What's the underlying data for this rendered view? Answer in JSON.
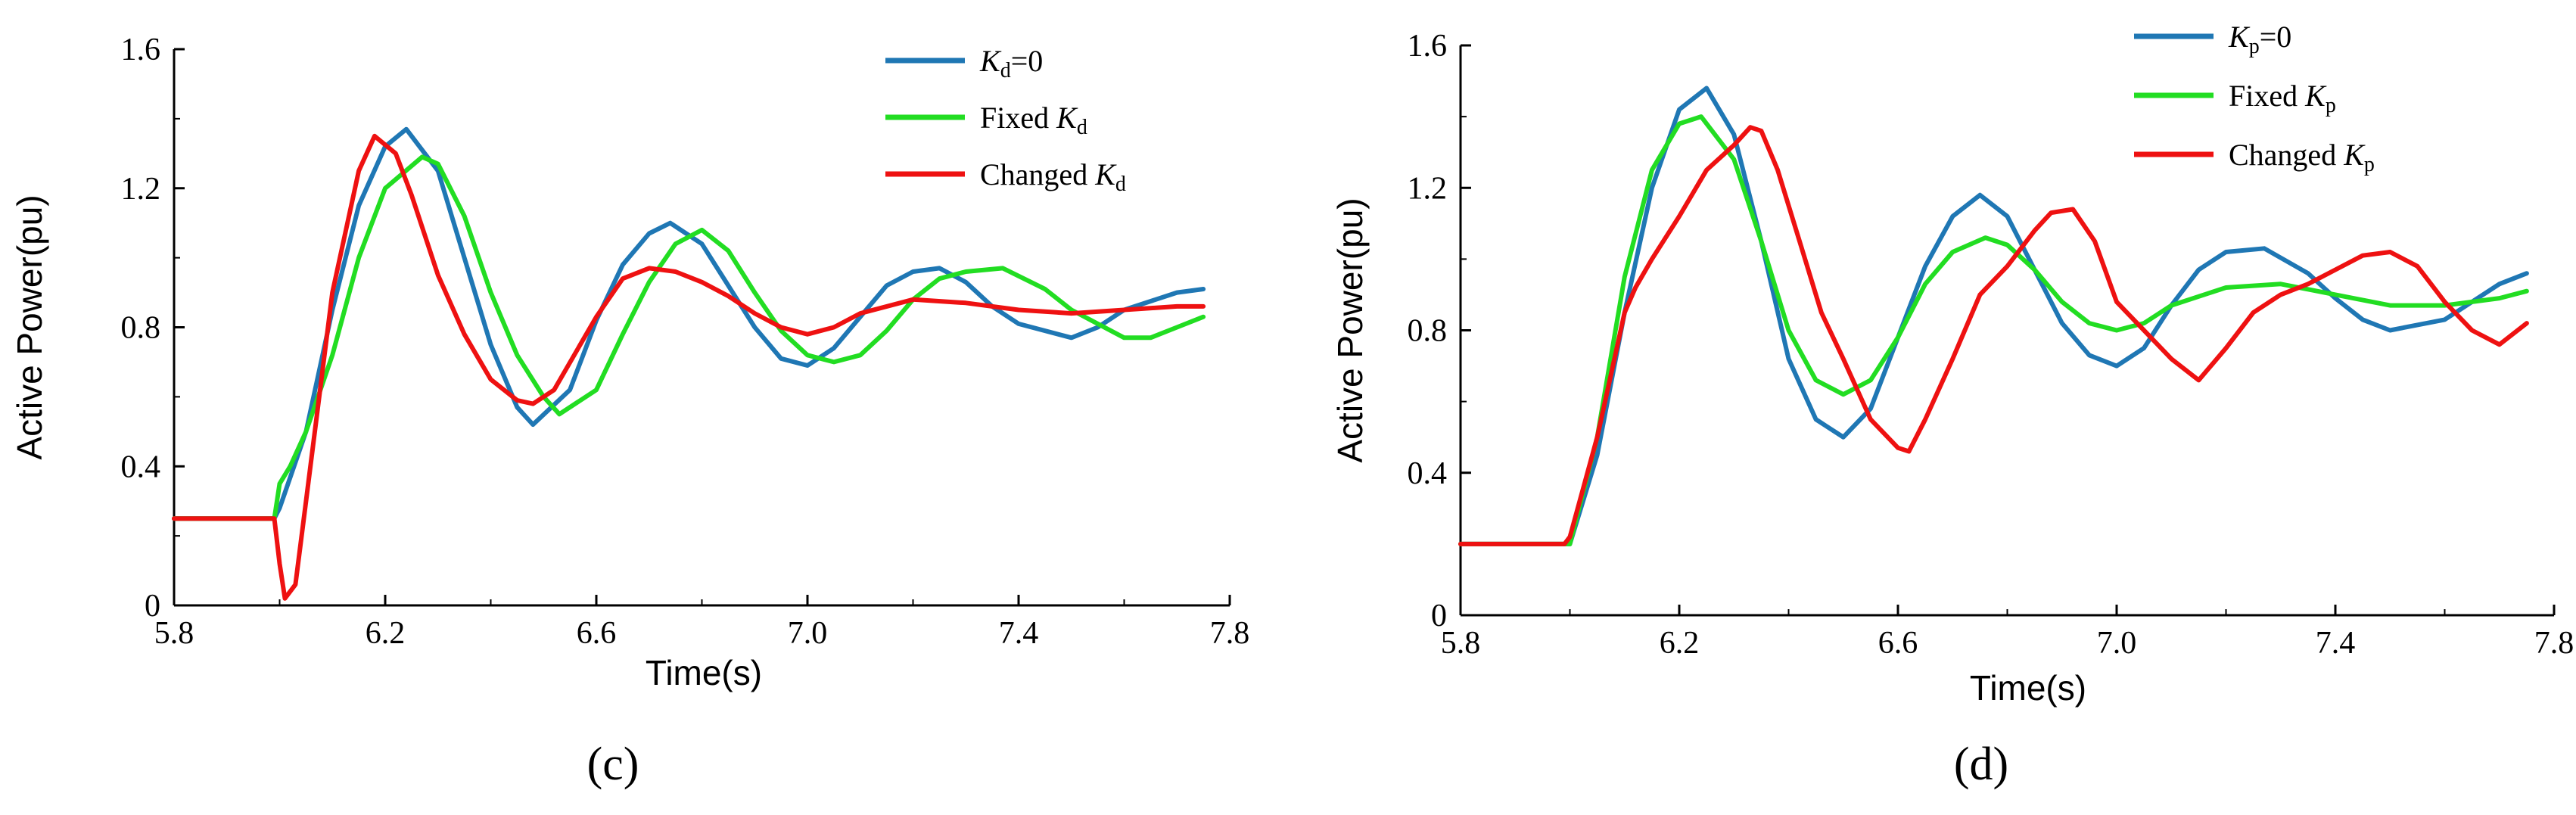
{
  "chart_data": [
    {
      "type": "line",
      "panel_label": "(c)",
      "xlabel": "Time(s)",
      "ylabel": "Active Power(pu)",
      "xlim": [
        5.8,
        7.8
      ],
      "ylim": [
        0,
        1.6
      ],
      "xticks": [
        "5.8",
        "6.2",
        "6.6",
        "7.0",
        "7.4",
        "7.8"
      ],
      "yticks": [
        "0",
        "0.4",
        "0.8",
        "1.2",
        "1.6"
      ],
      "grid": false,
      "legend_position": "top-right",
      "series": [
        {
          "name": "Kd=0",
          "color": "#1f77b4",
          "x": [
            5.8,
            5.99,
            6.0,
            6.05,
            6.1,
            6.15,
            6.2,
            6.24,
            6.3,
            6.35,
            6.4,
            6.45,
            6.48,
            6.55,
            6.6,
            6.65,
            6.7,
            6.74,
            6.8,
            6.85,
            6.9,
            6.95,
            7.0,
            7.05,
            7.1,
            7.15,
            7.2,
            7.25,
            7.3,
            7.35,
            7.4,
            7.5,
            7.55,
            7.6,
            7.7,
            7.75
          ],
          "y": [
            0.25,
            0.25,
            0.28,
            0.5,
            0.85,
            1.15,
            1.32,
            1.37,
            1.25,
            1.0,
            0.75,
            0.57,
            0.52,
            0.62,
            0.82,
            0.98,
            1.07,
            1.1,
            1.04,
            0.92,
            0.8,
            0.71,
            0.69,
            0.74,
            0.83,
            0.92,
            0.96,
            0.97,
            0.93,
            0.86,
            0.81,
            0.77,
            0.8,
            0.85,
            0.9,
            0.91
          ]
        },
        {
          "name": "Fixed Kd",
          "color": "#22dd22",
          "x": [
            5.8,
            5.99,
            6.0,
            6.02,
            6.05,
            6.1,
            6.15,
            6.2,
            6.27,
            6.3,
            6.35,
            6.4,
            6.45,
            6.5,
            6.53,
            6.6,
            6.65,
            6.7,
            6.75,
            6.8,
            6.85,
            6.9,
            6.95,
            7.0,
            7.05,
            7.1,
            7.15,
            7.2,
            7.25,
            7.3,
            7.37,
            7.45,
            7.5,
            7.6,
            7.65,
            7.7,
            7.75
          ],
          "y": [
            0.25,
            0.25,
            0.35,
            0.4,
            0.5,
            0.72,
            1.0,
            1.2,
            1.29,
            1.27,
            1.12,
            0.9,
            0.72,
            0.6,
            0.55,
            0.62,
            0.78,
            0.93,
            1.04,
            1.08,
            1.02,
            0.9,
            0.79,
            0.72,
            0.7,
            0.72,
            0.79,
            0.88,
            0.94,
            0.96,
            0.97,
            0.91,
            0.85,
            0.77,
            0.77,
            0.8,
            0.83
          ]
        },
        {
          "name": "Changed Kd",
          "color": "#ee1111",
          "x": [
            5.8,
            5.99,
            6.0,
            6.01,
            6.03,
            6.05,
            6.1,
            6.15,
            6.18,
            6.22,
            6.25,
            6.3,
            6.35,
            6.4,
            6.45,
            6.48,
            6.52,
            6.6,
            6.65,
            6.7,
            6.75,
            6.8,
            6.85,
            6.9,
            6.95,
            7.0,
            7.05,
            7.1,
            7.2,
            7.3,
            7.4,
            7.5,
            7.6,
            7.7,
            7.75
          ],
          "y": [
            0.25,
            0.25,
            0.12,
            0.02,
            0.06,
            0.3,
            0.9,
            1.25,
            1.35,
            1.3,
            1.18,
            0.95,
            0.78,
            0.65,
            0.59,
            0.58,
            0.62,
            0.83,
            0.94,
            0.97,
            0.96,
            0.93,
            0.89,
            0.84,
            0.8,
            0.78,
            0.8,
            0.84,
            0.88,
            0.87,
            0.85,
            0.84,
            0.85,
            0.86,
            0.86
          ]
        }
      ]
    },
    {
      "type": "line",
      "panel_label": "(d)",
      "xlabel": "Time(s)",
      "ylabel": "Active Power(pu)",
      "xlim": [
        5.8,
        7.8
      ],
      "ylim": [
        0,
        1.6
      ],
      "xticks": [
        "5.8",
        "6.2",
        "6.6",
        "7.0",
        "7.4",
        "7.8"
      ],
      "yticks": [
        "0",
        "0.4",
        "0.8",
        "1.2",
        "1.6"
      ],
      "grid": false,
      "legend_position": "top-right",
      "series": [
        {
          "name": "Kp=0",
          "color": "#1f77b4",
          "x": [
            5.8,
            5.99,
            6.0,
            6.05,
            6.1,
            6.15,
            6.2,
            6.25,
            6.3,
            6.35,
            6.4,
            6.45,
            6.5,
            6.55,
            6.6,
            6.65,
            6.7,
            6.75,
            6.8,
            6.85,
            6.9,
            6.95,
            7.0,
            7.05,
            7.1,
            7.15,
            7.2,
            7.27,
            7.35,
            7.4,
            7.45,
            7.5,
            7.6,
            7.7,
            7.75
          ],
          "y": [
            0.2,
            0.2,
            0.2,
            0.45,
            0.85,
            1.2,
            1.42,
            1.48,
            1.35,
            1.05,
            0.72,
            0.55,
            0.5,
            0.58,
            0.78,
            0.98,
            1.12,
            1.18,
            1.12,
            0.97,
            0.82,
            0.73,
            0.7,
            0.75,
            0.87,
            0.97,
            1.02,
            1.03,
            0.96,
            0.89,
            0.83,
            0.8,
            0.83,
            0.93,
            0.96
          ]
        },
        {
          "name": "Fixed Kp",
          "color": "#22dd22",
          "x": [
            5.8,
            5.99,
            6.0,
            6.05,
            6.1,
            6.15,
            6.2,
            6.24,
            6.3,
            6.35,
            6.4,
            6.45,
            6.5,
            6.55,
            6.6,
            6.65,
            6.7,
            6.76,
            6.8,
            6.85,
            6.9,
            6.95,
            7.0,
            7.05,
            7.1,
            7.2,
            7.3,
            7.4,
            7.5,
            7.6,
            7.7,
            7.75
          ],
          "y": [
            0.2,
            0.2,
            0.2,
            0.5,
            0.95,
            1.25,
            1.38,
            1.4,
            1.28,
            1.05,
            0.8,
            0.66,
            0.62,
            0.66,
            0.78,
            0.93,
            1.02,
            1.06,
            1.04,
            0.97,
            0.88,
            0.82,
            0.8,
            0.82,
            0.87,
            0.92,
            0.93,
            0.9,
            0.87,
            0.87,
            0.89,
            0.91
          ]
        },
        {
          "name": "Changed Kp",
          "color": "#ee1111",
          "x": [
            5.8,
            5.99,
            6.0,
            6.05,
            6.1,
            6.12,
            6.15,
            6.2,
            6.25,
            6.3,
            6.33,
            6.35,
            6.38,
            6.42,
            6.46,
            6.5,
            6.55,
            6.6,
            6.62,
            6.65,
            6.7,
            6.75,
            6.8,
            6.85,
            6.88,
            6.92,
            6.96,
            7.0,
            7.05,
            7.1,
            7.15,
            7.2,
            7.25,
            7.3,
            7.35,
            7.4,
            7.45,
            7.5,
            7.55,
            7.6,
            7.65,
            7.7,
            7.75
          ],
          "y": [
            0.2,
            0.2,
            0.22,
            0.5,
            0.85,
            0.92,
            1.0,
            1.12,
            1.25,
            1.32,
            1.37,
            1.36,
            1.25,
            1.05,
            0.85,
            0.72,
            0.55,
            0.47,
            0.46,
            0.55,
            0.72,
            0.9,
            0.98,
            1.08,
            1.13,
            1.14,
            1.05,
            0.88,
            0.8,
            0.72,
            0.66,
            0.75,
            0.85,
            0.9,
            0.93,
            0.97,
            1.01,
            1.02,
            0.98,
            0.88,
            0.8,
            0.76,
            0.82
          ]
        }
      ]
    }
  ],
  "legends": [
    {
      "items": [
        {
          "main": "K",
          "sub": "d",
          "tail": "=0",
          "pre": ""
        },
        {
          "main": "K",
          "sub": "d",
          "tail": "",
          "pre": "Fixed "
        },
        {
          "main": "K",
          "sub": "d",
          "tail": "",
          "pre": "Changed  "
        }
      ]
    },
    {
      "items": [
        {
          "main": "K",
          "sub": "p",
          "tail": "=0",
          "pre": ""
        },
        {
          "main": "K",
          "sub": "p",
          "tail": "",
          "pre": "Fixed "
        },
        {
          "main": "K",
          "sub": "p",
          "tail": "",
          "pre": "Changed  "
        }
      ]
    }
  ]
}
